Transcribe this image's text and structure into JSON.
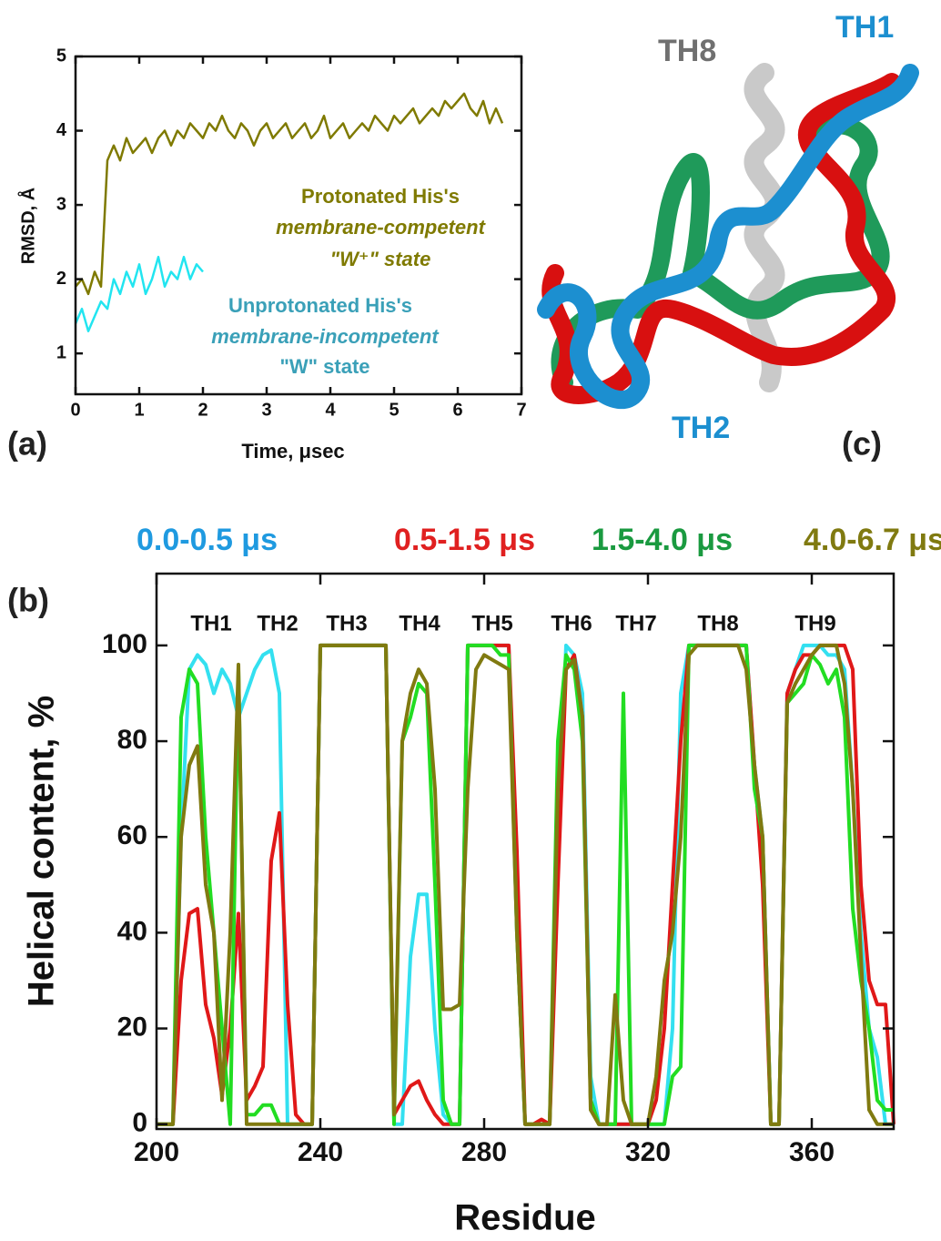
{
  "figure": {
    "panel_labels": [
      "(a)",
      "(b)",
      "(c)"
    ],
    "structure_labels": [
      "TH8",
      "TH1",
      "TH2"
    ]
  },
  "chart_data": [
    {
      "type": "line",
      "xlabel": "Time,  μsec",
      "ylabel": "RMSD, Å",
      "xlim": [
        0,
        7
      ],
      "ylim": [
        0.45,
        5
      ],
      "xticks": [
        0,
        1,
        2,
        3,
        4,
        5,
        6,
        7
      ],
      "yticks": [
        1,
        2,
        3,
        4,
        5
      ],
      "annotations": [
        "Protonated His's",
        "membrane-competent",
        "\"W⁺\" state",
        "Unprotonated His's",
        "membrane-incompetent",
        "\"W\" state"
      ],
      "x": [
        0,
        0.1,
        0.2,
        0.3,
        0.4,
        0.5,
        0.6,
        0.7,
        0.8,
        0.9,
        1,
        1.1,
        1.2,
        1.3,
        1.4,
        1.5,
        1.6,
        1.7,
        1.8,
        1.9,
        2,
        2.1,
        2.2,
        2.3,
        2.4,
        2.5,
        2.6,
        2.7,
        2.8,
        2.9,
        3,
        3.1,
        3.2,
        3.3,
        3.4,
        3.5,
        3.6,
        3.7,
        3.8,
        3.9,
        4,
        4.1,
        4.2,
        4.3,
        4.4,
        4.5,
        4.6,
        4.7,
        4.8,
        4.9,
        5,
        5.1,
        5.2,
        5.3,
        5.4,
        5.5,
        5.6,
        5.7,
        5.8,
        5.9,
        6,
        6.1,
        6.2,
        6.3,
        6.4,
        6.5,
        6.6,
        6.7
      ],
      "series": [
        {
          "name": "Protonated His's",
          "color": "#7f7a00",
          "values": [
            1.9,
            2.0,
            1.8,
            2.1,
            1.9,
            3.6,
            3.8,
            3.6,
            3.9,
            3.7,
            3.8,
            3.9,
            3.7,
            3.9,
            4.0,
            3.8,
            4.0,
            3.9,
            4.1,
            4.0,
            3.9,
            4.1,
            4.0,
            4.2,
            4.0,
            3.9,
            4.1,
            4.0,
            3.8,
            4.0,
            4.1,
            3.9,
            4.0,
            4.1,
            3.9,
            4.0,
            4.1,
            3.9,
            4.0,
            4.2,
            3.9,
            4.0,
            4.1,
            3.9,
            4.0,
            4.1,
            4.0,
            4.2,
            4.1,
            4.0,
            4.2,
            4.1,
            4.2,
            4.3,
            4.1,
            4.2,
            4.3,
            4.2,
            4.4,
            4.3,
            4.4,
            4.5,
            4.3,
            4.2,
            4.4,
            4.1,
            4.3,
            4.1
          ]
        },
        {
          "name": "Unprotonated His's",
          "color": "#22e5f0",
          "values": [
            1.4,
            1.6,
            1.3,
            1.5,
            1.7,
            1.6,
            2.0,
            1.8,
            2.1,
            1.9,
            2.2,
            1.8,
            2.0,
            2.3,
            1.9,
            2.1,
            2.0,
            2.3,
            2.0,
            2.2,
            2.1,
            null,
            null,
            null,
            null,
            null,
            null,
            null,
            null,
            null,
            null,
            null,
            null,
            null,
            null,
            null,
            null,
            null,
            null,
            null,
            null,
            null,
            null,
            null,
            null,
            null,
            null,
            null,
            null,
            null,
            null,
            null,
            null,
            null,
            null,
            null,
            null,
            null,
            null,
            null,
            null,
            null,
            null,
            null,
            null,
            null,
            null,
            null
          ]
        }
      ]
    },
    {
      "type": "line",
      "xlabel": "Residue",
      "ylabel": "Helical content, %",
      "xlim": [
        200,
        380
      ],
      "ylim": [
        -1,
        115
      ],
      "xticks": [
        200,
        240,
        280,
        320,
        360
      ],
      "yticks": [
        0,
        20,
        40,
        60,
        80,
        100
      ],
      "annotations": [
        "TH1",
        "TH2",
        "TH3",
        "TH4",
        "TH5",
        "TH6",
        "TH7",
        "TH8",
        "TH9"
      ],
      "x": [
        200,
        202,
        204,
        206,
        208,
        210,
        212,
        214,
        216,
        218,
        220,
        222,
        224,
        226,
        228,
        230,
        232,
        234,
        236,
        238,
        240,
        242,
        244,
        246,
        248,
        250,
        252,
        254,
        256,
        258,
        260,
        262,
        264,
        266,
        268,
        270,
        272,
        274,
        276,
        278,
        280,
        282,
        284,
        286,
        288,
        290,
        292,
        294,
        296,
        298,
        300,
        302,
        304,
        306,
        308,
        310,
        312,
        314,
        316,
        318,
        320,
        322,
        324,
        326,
        328,
        330,
        332,
        334,
        336,
        338,
        340,
        342,
        344,
        346,
        348,
        350,
        352,
        354,
        356,
        358,
        360,
        362,
        364,
        366,
        368,
        370,
        372,
        374,
        376,
        378,
        380
      ],
      "series": [
        {
          "name": "0.0-0.5 μs",
          "color": "#33e0f0",
          "label_color": "#1f9ae0",
          "values": [
            0,
            0,
            0,
            60,
            95,
            98,
            96,
            90,
            95,
            92,
            85,
            90,
            95,
            98,
            99,
            90,
            0,
            0,
            0,
            0,
            100,
            100,
            100,
            100,
            100,
            100,
            100,
            100,
            100,
            0,
            0,
            35,
            48,
            48,
            20,
            2,
            0,
            0,
            100,
            100,
            100,
            100,
            100,
            100,
            40,
            0,
            0,
            0,
            0,
            60,
            100,
            98,
            90,
            10,
            0,
            0,
            0,
            0,
            0,
            0,
            0,
            0,
            0,
            20,
            90,
            100,
            100,
            100,
            100,
            100,
            100,
            100,
            100,
            75,
            60,
            0,
            0,
            90,
            95,
            100,
            100,
            100,
            98,
            98,
            95,
            70,
            40,
            20,
            14,
            0,
            0
          ]
        },
        {
          "name": "0.5-1.5 μs",
          "color": "#e01818",
          "label_color": "#e02020",
          "values": [
            0,
            0,
            0,
            30,
            44,
            45,
            25,
            18,
            6,
            20,
            44,
            5,
            8,
            12,
            55,
            65,
            25,
            2,
            0,
            0,
            100,
            100,
            100,
            100,
            100,
            100,
            100,
            100,
            100,
            2,
            5,
            8,
            9,
            5,
            2,
            0,
            0,
            0,
            100,
            100,
            100,
            100,
            100,
            100,
            57,
            0,
            0,
            1,
            0,
            50,
            95,
            98,
            85,
            5,
            0,
            0,
            0,
            0,
            0,
            0,
            0,
            5,
            20,
            50,
            80,
            100,
            100,
            100,
            100,
            100,
            100,
            100,
            100,
            75,
            50,
            0,
            0,
            90,
            95,
            98,
            98,
            100,
            100,
            100,
            100,
            95,
            50,
            30,
            25,
            25,
            0
          ]
        },
        {
          "name": "1.5-4.0 μs",
          "color": "#22dd22",
          "label_color": "#1a9a40",
          "values": [
            0,
            0,
            0,
            85,
            95,
            92,
            60,
            40,
            20,
            0,
            95,
            2,
            2,
            4,
            4,
            0,
            0,
            0,
            0,
            0,
            100,
            100,
            100,
            100,
            100,
            100,
            100,
            100,
            100,
            0,
            80,
            85,
            92,
            90,
            50,
            5,
            0,
            0,
            100,
            100,
            100,
            100,
            98,
            98,
            40,
            0,
            0,
            0,
            0,
            80,
            98,
            95,
            80,
            5,
            0,
            0,
            0,
            90,
            0,
            0,
            0,
            0,
            0,
            10,
            12,
            100,
            100,
            100,
            100,
            100,
            100,
            100,
            100,
            70,
            60,
            0,
            0,
            88,
            90,
            92,
            98,
            96,
            92,
            95,
            85,
            45,
            30,
            20,
            5,
            3,
            3
          ]
        },
        {
          "name": "4.0-6.7 μs",
          "color": "#807a10",
          "label_color": "#807a10",
          "values": [
            0,
            0,
            0,
            60,
            75,
            79,
            50,
            40,
            5,
            40,
            96,
            0,
            0,
            0,
            0,
            0,
            0,
            0,
            0,
            0,
            100,
            100,
            100,
            100,
            100,
            100,
            100,
            100,
            100,
            2,
            80,
            90,
            95,
            92,
            70,
            24,
            24,
            25,
            70,
            95,
            98,
            97,
            96,
            95,
            40,
            0,
            0,
            0,
            0,
            70,
            95,
            97,
            85,
            3,
            0,
            0,
            27,
            5,
            0,
            0,
            0,
            10,
            30,
            40,
            60,
            98,
            100,
            100,
            100,
            100,
            100,
            100,
            95,
            75,
            60,
            0,
            0,
            88,
            92,
            95,
            98,
            100,
            100,
            100,
            92,
            70,
            35,
            3,
            0,
            0,
            0
          ]
        }
      ]
    }
  ]
}
